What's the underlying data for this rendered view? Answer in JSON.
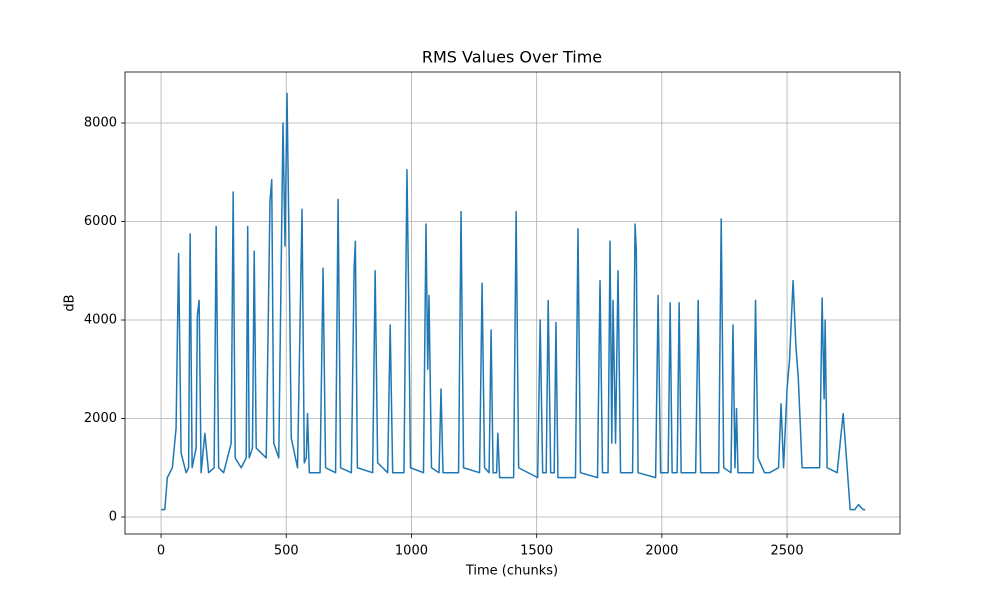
{
  "chart_data": {
    "type": "line",
    "title": "RMS Values Over Time",
    "x_label": "Time (chunks)",
    "y_label": "dB",
    "grid": true,
    "xlim": [
      -144,
      2951
    ],
    "ylim": [
      -345,
      9036
    ],
    "xticks": [
      0,
      500,
      1000,
      1500,
      2000,
      2500
    ],
    "yticks": [
      0,
      2000,
      4000,
      6000,
      8000
    ],
    "series": [
      {
        "color": "#1f77b4",
        "x": [
          0,
          15,
          25,
          45,
          60,
          70,
          80,
          100,
          110,
          116,
          124,
          140,
          145,
          152,
          160,
          175,
          190,
          212,
          220,
          230,
          250,
          280,
          288,
          296,
          320,
          340,
          346,
          352,
          365,
          372,
          380,
          420,
          435,
          442,
          450,
          470,
          487,
          495,
          503,
          510,
          520,
          545,
          563,
          572,
          580,
          585,
          592,
          635,
          647,
          657,
          697,
          707,
          717,
          760,
          771,
          776,
          784,
          845,
          855,
          865,
          905,
          915,
          925,
          970,
          982,
          989,
          996,
          1048,
          1058,
          1065,
          1070,
          1080,
          1110,
          1118,
          1126,
          1188,
          1198,
          1208,
          1272,
          1282,
          1292,
          1310,
          1318,
          1326,
          1340,
          1345,
          1352,
          1408,
          1418,
          1428,
          1504,
          1514,
          1524,
          1538,
          1546,
          1556,
          1570,
          1577,
          1585,
          1655,
          1665,
          1675,
          1743,
          1753,
          1763,
          1785,
          1793,
          1800,
          1805,
          1815,
          1825,
          1835,
          1883,
          1893,
          1898,
          1905,
          1975,
          1985,
          1995,
          2025,
          2033,
          2041,
          2061,
          2069,
          2077,
          2135,
          2145,
          2155,
          2227,
          2237,
          2247,
          2276,
          2284,
          2292,
          2298,
          2304,
          2365,
          2374,
          2384,
          2410,
          2430,
          2466,
          2476,
          2486,
          2500,
          2510,
          2524,
          2535,
          2545,
          2560,
          2630,
          2640,
          2648,
          2652,
          2660,
          2700,
          2724,
          2740,
          2752,
          2770,
          2785,
          2804,
          2812
        ],
        "values": [
          150,
          150,
          800,
          1000,
          1800,
          5350,
          1300,
          900,
          1000,
          5750,
          1000,
          1400,
          4100,
          4400,
          900,
          1700,
          900,
          1000,
          5900,
          1000,
          900,
          1500,
          6600,
          1200,
          1000,
          1200,
          5900,
          1200,
          1400,
          5400,
          1400,
          1200,
          6400,
          6850,
          1500,
          1200,
          8000,
          5500,
          8600,
          6000,
          1600,
          1000,
          6250,
          1100,
          1200,
          2100,
          900,
          900,
          5050,
          1000,
          900,
          6450,
          1000,
          900,
          5050,
          5600,
          1000,
          900,
          5000,
          1100,
          900,
          3900,
          900,
          900,
          7050,
          4400,
          1000,
          900,
          5950,
          3000,
          4500,
          1000,
          900,
          2600,
          900,
          900,
          6200,
          1000,
          900,
          4750,
          1000,
          900,
          3800,
          900,
          900,
          1700,
          800,
          800,
          6200,
          1000,
          800,
          4000,
          900,
          900,
          4400,
          900,
          900,
          3950,
          800,
          800,
          5850,
          900,
          800,
          4800,
          900,
          900,
          5600,
          1500,
          4400,
          1500,
          5000,
          900,
          900,
          5950,
          5400,
          900,
          800,
          4500,
          900,
          900,
          4350,
          900,
          900,
          4350,
          900,
          900,
          4400,
          900,
          900,
          6050,
          1000,
          900,
          3900,
          1000,
          2200,
          900,
          900,
          4400,
          1200,
          900,
          900,
          1000,
          2300,
          1000,
          2600,
          3200,
          4800,
          3500,
          2800,
          1000,
          1000,
          4450,
          2400,
          4000,
          1000,
          900,
          2100,
          1000,
          150,
          150,
          250,
          150,
          150
        ]
      }
    ]
  }
}
